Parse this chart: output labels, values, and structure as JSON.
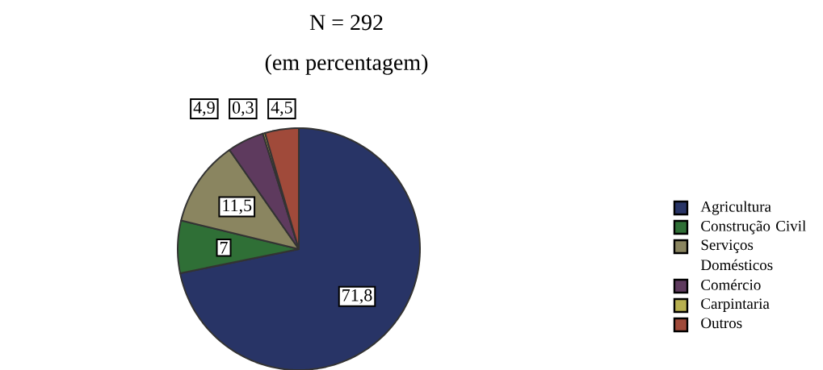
{
  "chart_data": {
    "type": "pie",
    "title": "N = 292",
    "subtitle": "(em percentagem)",
    "categories": [
      "Agricultura",
      "Construção Civil",
      "Serviços Domésticos",
      "Comércio",
      "Carpintaria",
      "Outros"
    ],
    "values": [
      71.8,
      7,
      11.5,
      4.9,
      0.3,
      4.5
    ],
    "value_labels": [
      "71,8",
      "7",
      "11,5",
      "4,9",
      "0,3",
      "4,5"
    ],
    "colors": [
      "#283466",
      "#2f6f36",
      "#8a8560",
      "#5e3a5e",
      "#b8b050",
      "#a04a3a"
    ],
    "legend": "right"
  }
}
